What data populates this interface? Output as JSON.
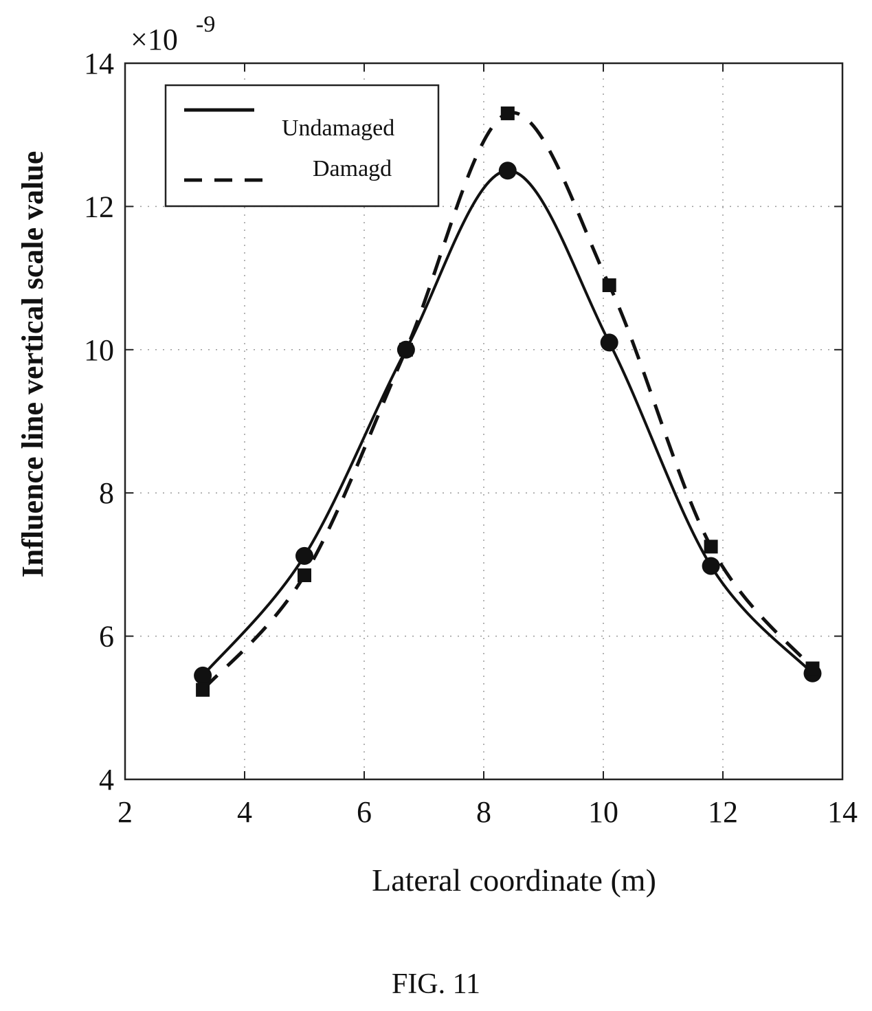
{
  "figure_caption": "FIG. 11",
  "chart_data": {
    "type": "line",
    "title": "",
    "xlabel": "Lateral coordinate (m)",
    "ylabel": "Influence line vertical scale value",
    "y_exponent_label": "×10",
    "y_exponent_power": "-9",
    "xlim": [
      2,
      14
    ],
    "ylim": [
      4,
      14
    ],
    "x_ticks": [
      2,
      4,
      6,
      8,
      10,
      12,
      14
    ],
    "y_ticks": [
      4,
      6,
      8,
      10,
      12,
      14
    ],
    "grid": true,
    "legend_position": "top-left",
    "series": [
      {
        "name": "Undamaged",
        "line_style": "solid",
        "marker": "circle",
        "color": "#111111",
        "x": [
          3.3,
          5.0,
          6.7,
          8.4,
          10.1,
          11.8,
          13.5
        ],
        "y": [
          5.45,
          7.12,
          10.0,
          12.5,
          10.1,
          6.98,
          5.48
        ]
      },
      {
        "name": "Damagd",
        "line_style": "dashed",
        "marker": "square",
        "color": "#111111",
        "x": [
          3.3,
          5.0,
          6.7,
          8.4,
          10.1,
          11.8,
          13.5
        ],
        "y": [
          5.25,
          6.85,
          10.0,
          13.3,
          10.9,
          7.25,
          5.55
        ]
      }
    ]
  }
}
